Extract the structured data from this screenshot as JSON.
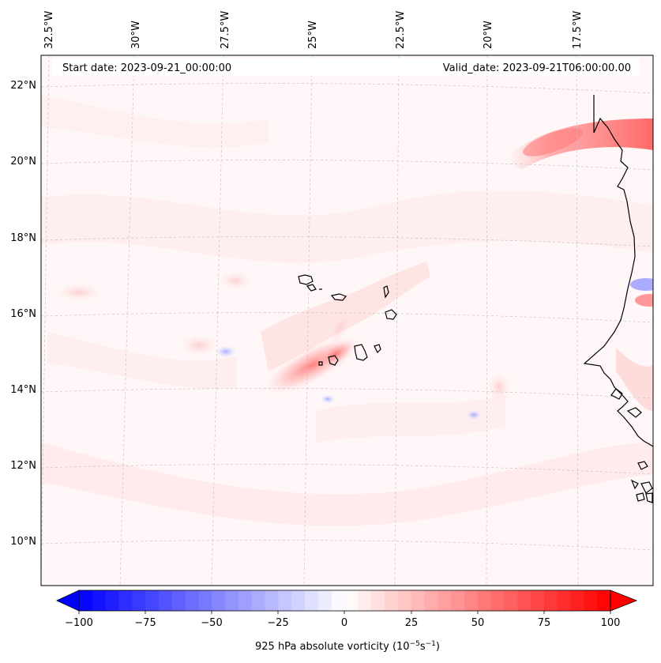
{
  "header": {
    "start_date": "Start date: 2023-09-21_00:00:00",
    "valid_date": "Valid_date: 2023-09-21T06:00:00.00"
  },
  "map": {
    "lon_labels": [
      "32.5°W",
      "30°W",
      "27.5°W",
      "25°W",
      "22.5°W",
      "20°W",
      "17.5°W"
    ],
    "lat_labels": [
      "22°N",
      "20°N",
      "18°N",
      "16°N",
      "14°N",
      "12°N",
      "10°N"
    ],
    "gridlines": "dashed",
    "ocean_color": "#fff6f6",
    "coast_color": "#000000"
  },
  "colorbar": {
    "ticks": [
      "−100",
      "−75",
      "−50",
      "−25",
      "0",
      "25",
      "50",
      "75",
      "100"
    ],
    "label_main": "925 hPa absolute vorticity (10",
    "label_exp1": "−5",
    "label_mid": "s",
    "label_exp2": "−1",
    "label_end": ")",
    "min_color": "#0000ff",
    "mid_color": "#ffffff",
    "max_color": "#ff0000"
  }
}
